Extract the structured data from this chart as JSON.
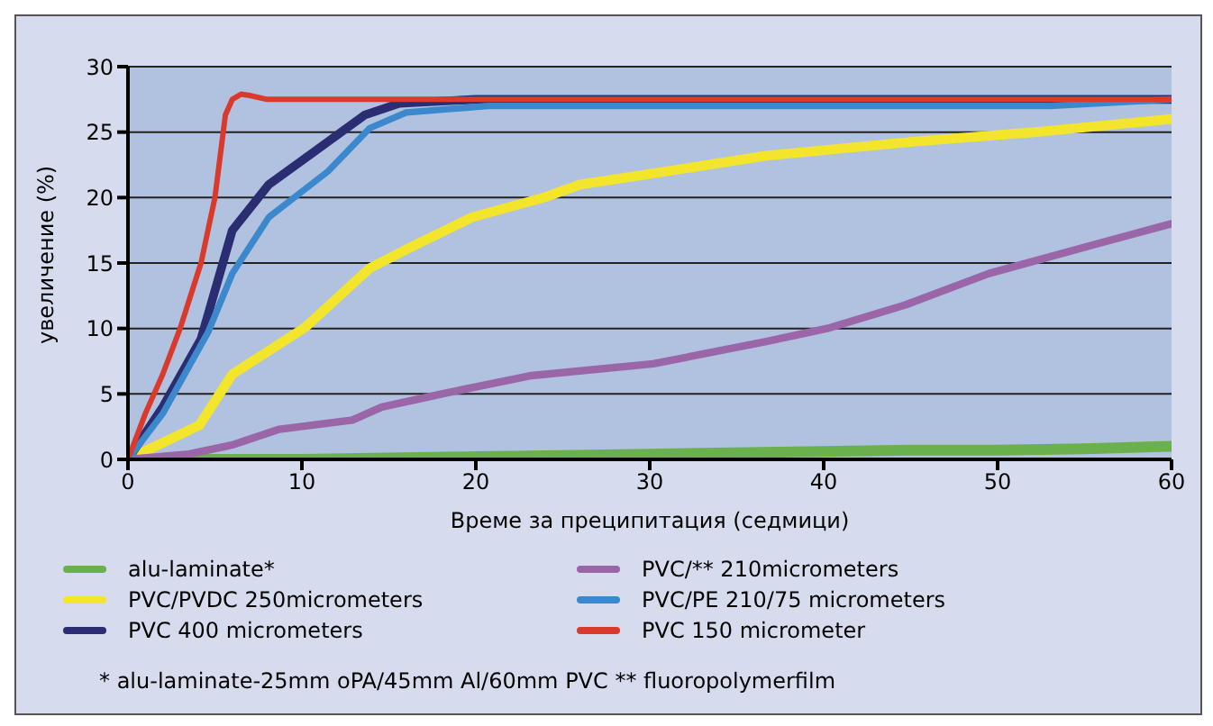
{
  "chart_data": {
    "type": "line",
    "xlabel": "Време за преципитация (седмици)",
    "ylabel": "увеличение (%)",
    "xlim": [
      0,
      60
    ],
    "xticks": [
      0,
      10,
      20,
      30,
      40,
      50,
      60
    ],
    "ylim": [
      0,
      30
    ],
    "yticks": [
      0,
      5,
      10,
      15,
      20,
      25,
      30
    ],
    "grid": "y",
    "legend": "bottom",
    "marker": "none",
    "line_style": "solid",
    "series": [
      {
        "name": "alu-laminate*",
        "color": "#6ab04c",
        "x": [
          0,
          10,
          20,
          25,
          30,
          40,
          45,
          50,
          55,
          60
        ],
        "values": [
          0,
          0,
          0.2,
          0.3,
          0.4,
          0.6,
          0.7,
          0.7,
          0.8,
          1
        ]
      },
      {
        "name": "PVC/PVDC 250micrometers",
        "color": "#f2e52c",
        "x": [
          0,
          4.1,
          6,
          10.2,
          13.9,
          16.4,
          19.8,
          23.9,
          26,
          30,
          36.7,
          45.4,
          52.2,
          60
        ],
        "values": [
          0,
          2.6,
          6.5,
          10.1,
          14.6,
          16.3,
          18.5,
          20,
          21,
          21.8,
          23.2,
          24.3,
          25,
          26
        ]
      },
      {
        "name": "PVC 400 micrometers",
        "color": "#2b2d73",
        "x": [
          0,
          2,
          4.2,
          6,
          8.1,
          10.8,
          13.6,
          15.6,
          20,
          60
        ],
        "values": [
          0,
          4,
          9.2,
          17.5,
          21,
          23.6,
          26.3,
          27.2,
          27.5,
          27.5
        ]
      },
      {
        "name": "PVC/** 210micrometers",
        "color": "#9b66a8",
        "x": [
          0,
          3.5,
          6,
          8.7,
          12.9,
          14.6,
          18.4,
          23.2,
          30.2,
          36.7,
          40.2,
          44.7,
          49.5,
          55.8,
          60
        ],
        "values": [
          0,
          0.4,
          1.1,
          2.3,
          3,
          4,
          5.1,
          6.4,
          7.3,
          9,
          10,
          11.8,
          14.2,
          16.5,
          18
        ]
      },
      {
        "name": "PVC/PE 210/75 micrometers",
        "color": "#3c88cc",
        "x": [
          0,
          2,
          4.6,
          6,
          8.1,
          11.5,
          13.9,
          16,
          20.7,
          30,
          53,
          60
        ],
        "values": [
          0,
          3.5,
          9.7,
          14.2,
          18.5,
          22,
          25.3,
          26.5,
          27,
          27,
          27,
          27.5
        ]
      },
      {
        "name": "PVC 150 micrometer",
        "color": "#d93a2b",
        "x": [
          0,
          1,
          2,
          3,
          4.2,
          5,
          5.6,
          6,
          6.5,
          7,
          8,
          60
        ],
        "values": [
          0,
          3.5,
          6.5,
          10,
          15,
          20,
          26.3,
          27.5,
          27.9,
          27.8,
          27.5,
          27.5
        ]
      }
    ],
    "annotations": [
      "* alu-laminate-25mm oPA/45mm Al/60mm PVC  ** fluoropolymerfilm"
    ]
  }
}
